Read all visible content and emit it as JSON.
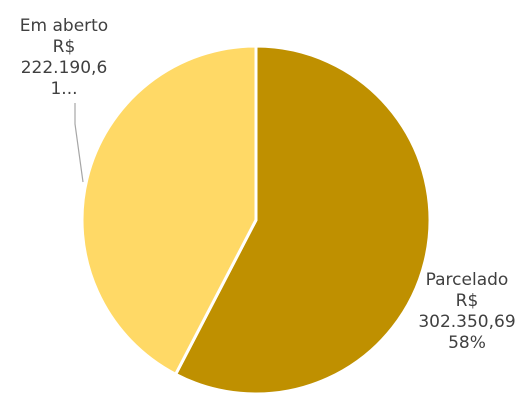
{
  "chart_data": {
    "type": "pie",
    "title": "",
    "categories": [
      "Parcelado",
      "Em aberto"
    ],
    "values": [
      302350.69,
      222190.61
    ],
    "slices": [
      {
        "name": "Parcelado",
        "value": 302350.69,
        "percent": 58,
        "color": "#BF9000",
        "label_lines": [
          "Parcelado",
          "R$",
          "302.350,69",
          "58%"
        ]
      },
      {
        "name": "Em aberto",
        "value": 222190.61,
        "percent": 42,
        "color": "#FFD966",
        "label_lines": [
          "Em aberto",
          "R$",
          "222.190,6",
          "1..."
        ]
      }
    ],
    "legend": "none",
    "start_angle": "12 o'clock",
    "direction": "clockwise"
  }
}
